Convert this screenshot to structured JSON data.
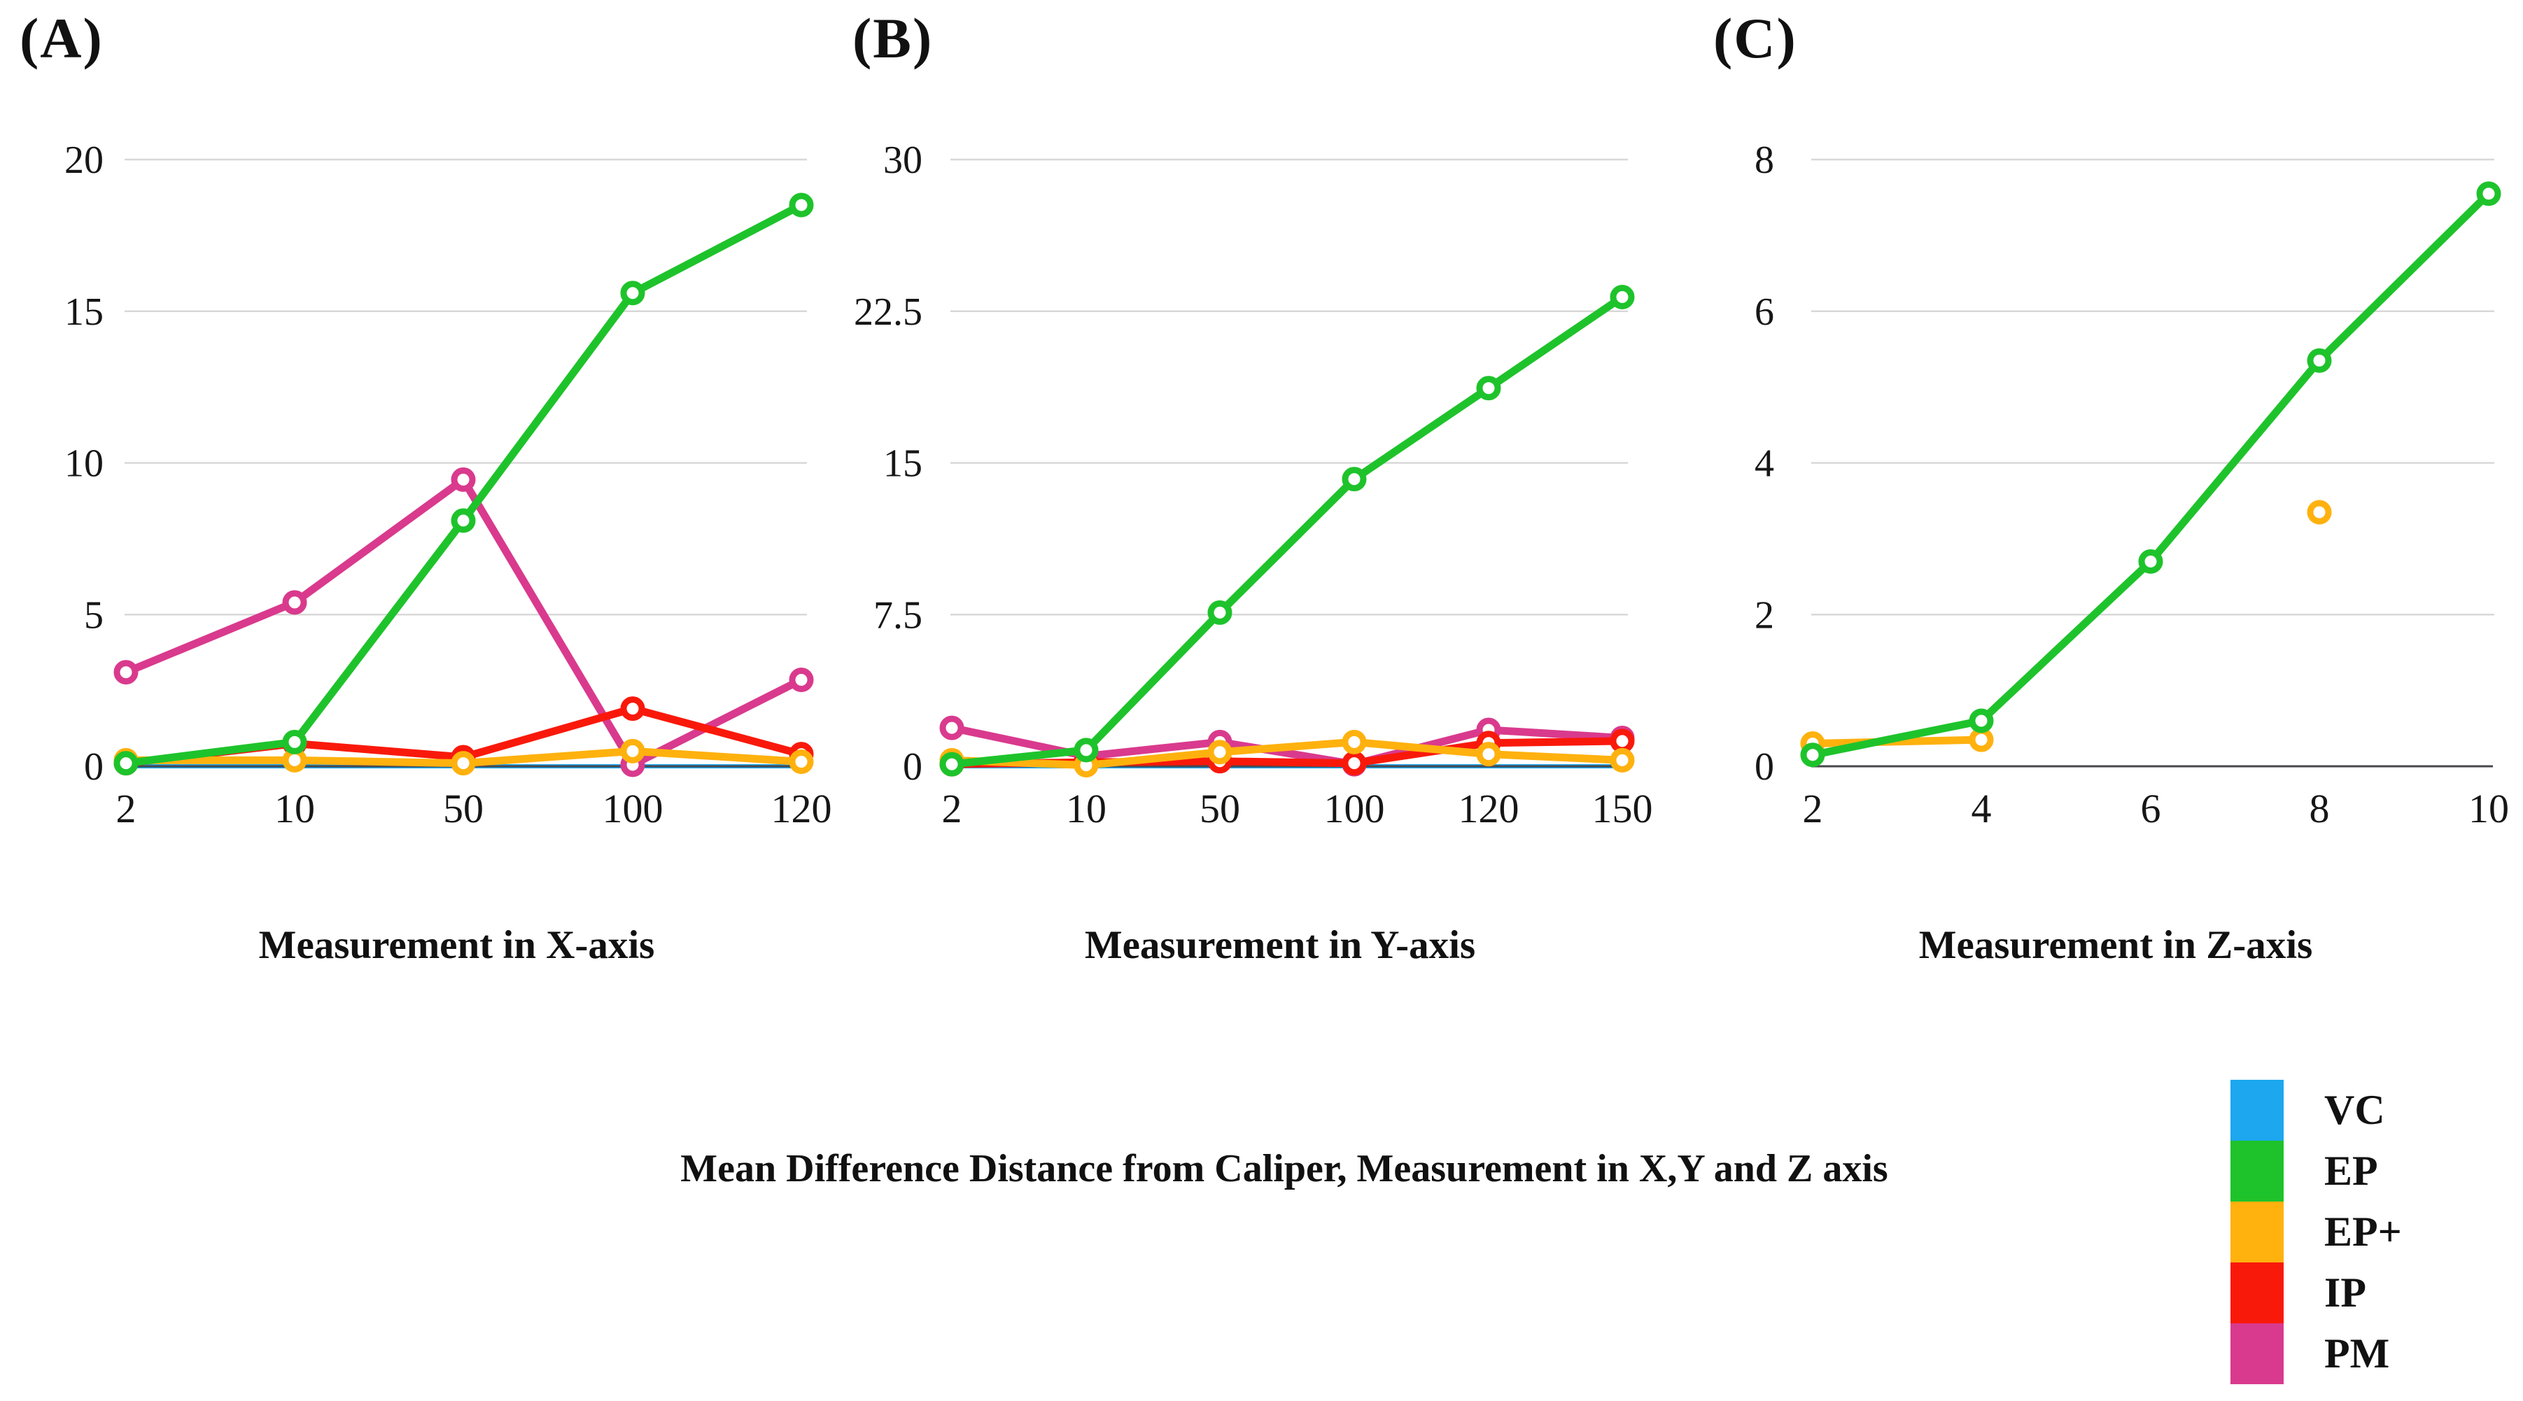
{
  "caption": "Mean Difference Distance from Caliper, Measurement in X,Y and Z axis",
  "legend": {
    "items": [
      {
        "label": "VC",
        "color": "#1CA7EE"
      },
      {
        "label": "EP",
        "color": "#1EC32B"
      },
      {
        "label": "EP+",
        "color": "#FFB10E"
      },
      {
        "label": "IP",
        "color": "#F9190B"
      },
      {
        "label": "PM",
        "color": "#D93A8D"
      }
    ]
  },
  "chart_data": [
    {
      "type": "line",
      "letter": "(A)",
      "xlabel": "Measurement in X-axis",
      "categories": [
        "2",
        "10",
        "50",
        "100",
        "120"
      ],
      "yticks": [
        "0",
        "5",
        "10",
        "15",
        "20"
      ],
      "ylim": [
        0,
        20
      ],
      "grid": true,
      "series": [
        {
          "name": "VC",
          "values": [
            0,
            0,
            0,
            0,
            0
          ]
        },
        {
          "name": "PM",
          "values": [
            3.1,
            5.4,
            9.45,
            0.05,
            2.85
          ]
        },
        {
          "name": "IP",
          "values": [
            0.1,
            0.75,
            0.3,
            1.9,
            0.4
          ]
        },
        {
          "name": "EP+",
          "values": [
            0.2,
            0.2,
            0.1,
            0.5,
            0.15
          ]
        },
        {
          "name": "EP",
          "values": [
            0.1,
            0.8,
            8.1,
            15.6,
            18.5
          ]
        }
      ]
    },
    {
      "type": "line",
      "letter": "(B)",
      "xlabel": "Measurement in Y-axis",
      "categories": [
        "2",
        "10",
        "50",
        "100",
        "120",
        "150"
      ],
      "yticks": [
        "0",
        "7.5",
        "15",
        "22.5",
        "30"
      ],
      "ylim": [
        0,
        30
      ],
      "grid": true,
      "series": [
        {
          "name": "VC",
          "values": [
            0,
            0,
            0,
            0,
            0,
            0
          ]
        },
        {
          "name": "PM",
          "values": [
            1.9,
            0.5,
            1.2,
            0.1,
            1.8,
            1.4
          ]
        },
        {
          "name": "IP",
          "values": [
            0.1,
            0.2,
            0.25,
            0.15,
            1.15,
            1.25
          ]
        },
        {
          "name": "EP+",
          "values": [
            0.3,
            0.05,
            0.7,
            1.2,
            0.6,
            0.3
          ]
        },
        {
          "name": "EP",
          "values": [
            0.1,
            0.8,
            7.6,
            14.2,
            18.7,
            23.2
          ]
        }
      ]
    },
    {
      "type": "line",
      "letter": "(C)",
      "xlabel": "Measurement in Z-axis",
      "categories": [
        "2",
        "4",
        "6",
        "8",
        "10"
      ],
      "yticks": [
        "0",
        "2",
        "4",
        "6",
        "8"
      ],
      "ylim": [
        0,
        8
      ],
      "grid": true,
      "series": [
        {
          "name": "EP+",
          "values": [
            0.3,
            0.35,
            null,
            3.35,
            null
          ]
        },
        {
          "name": "EP",
          "values": [
            0.15,
            0.6,
            2.7,
            5.35,
            7.55
          ]
        }
      ]
    }
  ]
}
